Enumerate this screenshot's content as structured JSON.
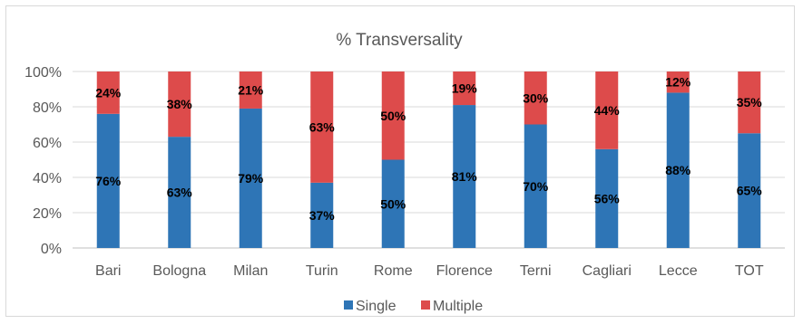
{
  "chart_data": {
    "type": "bar",
    "stacked": true,
    "title": "% Transversality",
    "xlabel": "",
    "ylabel": "",
    "ylim": [
      0,
      100
    ],
    "y_ticks": [
      "0%",
      "20%",
      "40%",
      "60%",
      "80%",
      "100%"
    ],
    "grid": true,
    "legend_position": "bottom",
    "categories": [
      "Bari",
      "Bologna",
      "Milan",
      "Turin",
      "Rome",
      "Florence",
      "Terni",
      "Cagliari",
      "Lecce",
      "TOT"
    ],
    "series": [
      {
        "name": "Single",
        "color": "#2e75b6",
        "values": [
          76,
          63,
          79,
          37,
          50,
          81,
          70,
          56,
          88,
          65
        ],
        "labels": [
          "76%",
          "63%",
          "79%",
          "37%",
          "50%",
          "81%",
          "70%",
          "56%",
          "88%",
          "65%"
        ]
      },
      {
        "name": "Multiple",
        "color": "#dd4b4b",
        "values": [
          24,
          38,
          21,
          63,
          50,
          19,
          30,
          44,
          12,
          35
        ],
        "labels": [
          "24%",
          "38%",
          "21%",
          "63%",
          "50%",
          "19%",
          "30%",
          "44%",
          "12%",
          "35%"
        ]
      }
    ]
  }
}
